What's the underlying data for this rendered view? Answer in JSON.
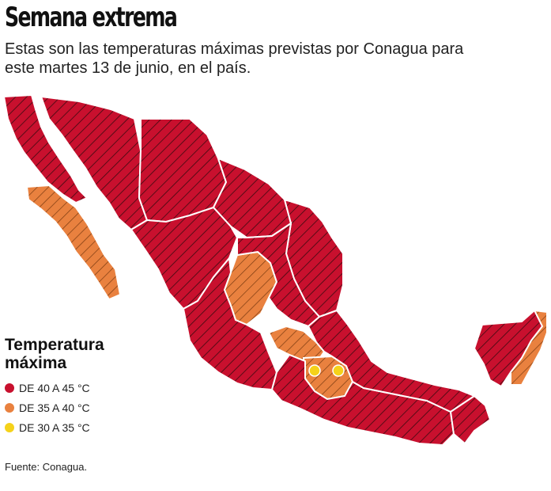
{
  "header": {
    "title": "Semana extrema",
    "subtitle": "Estas son las temperaturas máximas previstas por Conagua para este martes 13 de junio, en el país."
  },
  "legend": {
    "title_line1": "Temperatura",
    "title_line2": "máxima",
    "items": [
      {
        "label": "DE 40 A 45 °C",
        "color": "#c8102e"
      },
      {
        "label": "DE 35 A 40 °C",
        "color": "#e9813f"
      },
      {
        "label": "DE 30 A 35 °C",
        "color": "#f5d21a"
      }
    ]
  },
  "source": "Fuente: Conagua."
}
